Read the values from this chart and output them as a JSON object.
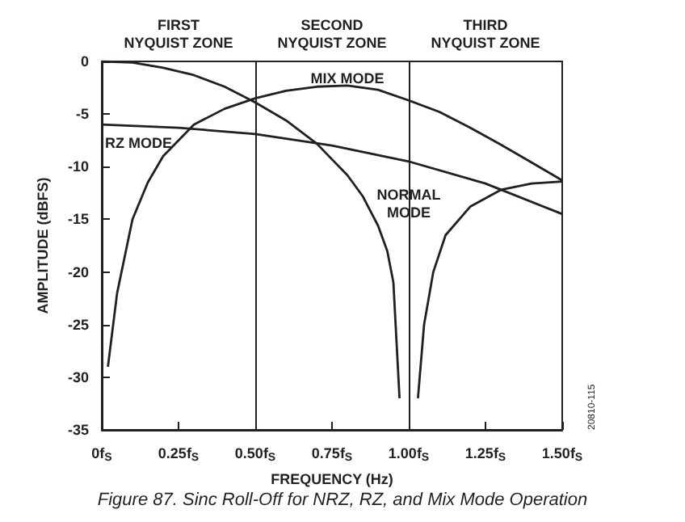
{
  "chart_data": {
    "type": "line",
    "xlabel": "FREQUENCY (Hz)",
    "ylabel": "AMPLITUDE (dBFS)",
    "xlim": [
      0,
      1.5
    ],
    "ylim": [
      -35,
      0
    ],
    "xticks": [
      {
        "value": 0,
        "label": "0f$_{S}$"
      },
      {
        "value": 0.25,
        "label": "0.25f$_{S}$"
      },
      {
        "value": 0.5,
        "label": "0.50f$_{S}$"
      },
      {
        "value": 0.75,
        "label": "0.75f$_{S}$"
      },
      {
        "value": 1,
        "label": "1.00f$_{S}$"
      },
      {
        "value": 1.25,
        "label": "1.25f$_{S}$"
      },
      {
        "value": 1.5,
        "label": "1.50f$_{S}$"
      }
    ],
    "yticks": [
      0,
      -5,
      -10,
      -15,
      -20,
      -25,
      -30,
      -35
    ],
    "grid": false,
    "marker": "none",
    "line_style": "solid",
    "series": [
      {
        "color": "#231f20",
        "x": [
          0,
          0.1,
          0.2,
          0.3,
          0.4,
          0.5,
          0.6,
          0.7,
          0.8,
          0.85,
          0.9,
          0.93,
          0.95,
          0.97,
          null,
          1.03,
          1.05,
          1.08,
          1.12,
          1.2,
          1.3,
          1.4,
          1.5
        ],
        "values": [
          0,
          -0.1,
          -0.6,
          -1.3,
          -2.4,
          -3.9,
          -5.6,
          -7.8,
          -10.8,
          -12.8,
          -15.6,
          -18,
          -21,
          -32,
          null,
          -32,
          -25,
          -20,
          -16.5,
          -13.8,
          -12.2,
          -11.6,
          -11.4
        ]
      },
      {
        "color": "#231f20",
        "x": [
          0,
          0.25,
          0.5,
          0.75,
          1,
          1.25,
          1.5
        ],
        "values": [
          -6,
          -6.3,
          -6.9,
          -8,
          -9.5,
          -11.6,
          -14.5
        ]
      },
      {
        "color": "#231f20",
        "x": [
          0.02,
          0.05,
          0.1,
          0.15,
          0.2,
          0.3,
          0.4,
          0.5,
          0.6,
          0.7,
          0.8,
          0.9,
          1,
          1.1,
          1.2,
          1.3,
          1.4,
          1.5
        ],
        "values": [
          -29,
          -22,
          -15,
          -11.5,
          -9,
          -6,
          -4.5,
          -3.5,
          -2.8,
          -2.4,
          -2.3,
          -2.7,
          -3.7,
          -4.8,
          -6.3,
          -7.9,
          -9.6,
          -11.3
        ]
      }
    ],
    "ref_lines": [
      {
        "axis": "x",
        "value": 0.5,
        "color": "#231f20"
      },
      {
        "axis": "x",
        "value": 1,
        "color": "#231f20"
      }
    ],
    "annotations": [
      "FIRST\nNYQUIST ZONE",
      "SECOND\nNYQUIST ZONE",
      "THIRD\nNYQUIST ZONE",
      {
        "text": "MIX MODE",
        "x": 0.8,
        "y": -1.6
      },
      "RZ MODE",
      {
        "text": "NORMAL\nMODE",
        "x": 1.0,
        "y": -13.5
      },
      "Figure 87. Sinc Roll-Off for NRZ, RZ, and Mix Mode Operation",
      "20810-115"
    ]
  }
}
